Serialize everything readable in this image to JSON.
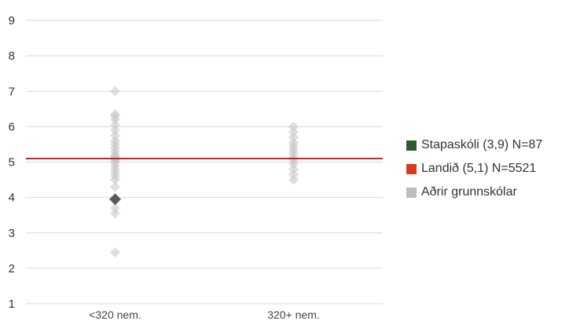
{
  "chart_data": {
    "type": "scatter",
    "categories": [
      "<320 nem.",
      "320+ nem."
    ],
    "yticks": [
      1,
      2,
      3,
      4,
      5,
      6,
      7,
      8,
      9
    ],
    "ylim": [
      1,
      9
    ],
    "grid": true,
    "legend_position": "right",
    "series": [
      {
        "name": "Stapaskóli (3,9) N=87",
        "color": "#2e5a32",
        "marker": "diamond",
        "points": [
          {
            "category": "<320 nem.",
            "y": 3.95
          }
        ]
      },
      {
        "name": "Landið (5,1) N=5521",
        "color": "#d93a1e",
        "line_color": "#cc2222",
        "marker": "line",
        "value": 5.1
      },
      {
        "name": "Aðrir grunnskólar",
        "color": "#bdbdbd",
        "marker": "diamond",
        "points": [
          {
            "category": "<320 nem.",
            "y": 2.45
          },
          {
            "category": "<320 nem.",
            "y": 3.55
          },
          {
            "category": "<320 nem.",
            "y": 3.7
          },
          {
            "category": "<320 nem.",
            "y": 4.3
          },
          {
            "category": "<320 nem.",
            "y": 4.5
          },
          {
            "category": "<320 nem.",
            "y": 4.6
          },
          {
            "category": "<320 nem.",
            "y": 4.7
          },
          {
            "category": "<320 nem.",
            "y": 4.8
          },
          {
            "category": "<320 nem.",
            "y": 4.9
          },
          {
            "category": "<320 nem.",
            "y": 5.0
          },
          {
            "category": "<320 nem.",
            "y": 5.05
          },
          {
            "category": "<320 nem.",
            "y": 5.1
          },
          {
            "category": "<320 nem.",
            "y": 5.15
          },
          {
            "category": "<320 nem.",
            "y": 5.2
          },
          {
            "category": "<320 nem.",
            "y": 5.3
          },
          {
            "category": "<320 nem.",
            "y": 5.4
          },
          {
            "category": "<320 nem.",
            "y": 5.5
          },
          {
            "category": "<320 nem.",
            "y": 5.6
          },
          {
            "category": "<320 nem.",
            "y": 5.75
          },
          {
            "category": "<320 nem.",
            "y": 5.9
          },
          {
            "category": "<320 nem.",
            "y": 6.05
          },
          {
            "category": "<320 nem.",
            "y": 6.2
          },
          {
            "category": "<320 nem.",
            "y": 6.3
          },
          {
            "category": "<320 nem.",
            "y": 6.35
          },
          {
            "category": "<320 nem.",
            "y": 7.0
          },
          {
            "category": "320+ nem.",
            "y": 4.5
          },
          {
            "category": "320+ nem.",
            "y": 4.65
          },
          {
            "category": "320+ nem.",
            "y": 4.8
          },
          {
            "category": "320+ nem.",
            "y": 4.95
          },
          {
            "category": "320+ nem.",
            "y": 5.05
          },
          {
            "category": "320+ nem.",
            "y": 5.15
          },
          {
            "category": "320+ nem.",
            "y": 5.25
          },
          {
            "category": "320+ nem.",
            "y": 5.35
          },
          {
            "category": "320+ nem.",
            "y": 5.45
          },
          {
            "category": "320+ nem.",
            "y": 5.55
          },
          {
            "category": "320+ nem.",
            "y": 5.7
          },
          {
            "category": "320+ nem.",
            "y": 5.85
          },
          {
            "category": "320+ nem.",
            "y": 6.0
          }
        ]
      }
    ]
  }
}
